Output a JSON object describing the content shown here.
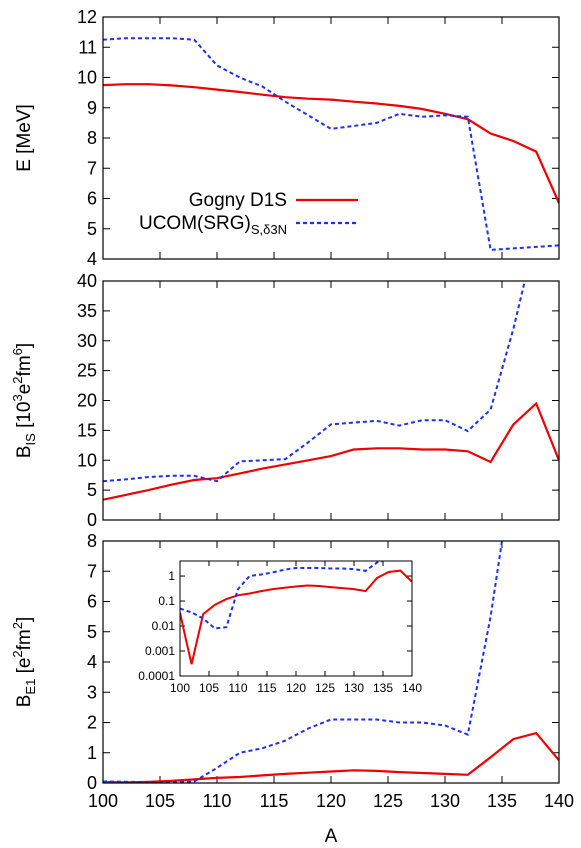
{
  "chart_data": {
    "type": "line",
    "xlabel": "A",
    "legend": {
      "placement": "lower-left of top panel",
      "entries": [
        {
          "series": "gogny",
          "label": "Gogny D1S",
          "sub": ""
        },
        {
          "series": "ucom",
          "label": "UCOM(SRG)",
          "sub": "S,δ3N"
        }
      ]
    },
    "colors": {
      "gogny": "#ee0000",
      "ucom": "#1f2fee"
    },
    "x_ticks": [
      "100",
      "105",
      "110",
      "115",
      "120",
      "125",
      "130",
      "135",
      "140"
    ],
    "panels": [
      {
        "id": "energy",
        "ylabel": {
          "base": "E [MeV]",
          "sub": "",
          "sup": ""
        },
        "xlim": [
          100,
          140
        ],
        "ylim": [
          4,
          12
        ],
        "y_ticks": [
          "4",
          "5",
          "6",
          "7",
          "8",
          "9",
          "10",
          "11",
          "12"
        ],
        "series": [
          {
            "key": "gogny",
            "name": "Gogny D1S",
            "style": "solid",
            "x": [
              100,
              102,
              104,
              106,
              108,
              110,
              112,
              114,
              116,
              118,
              120,
              122,
              124,
              126,
              128,
              130,
              132,
              134,
              136,
              138,
              140
            ],
            "y": [
              9.75,
              9.78,
              9.78,
              9.74,
              9.68,
              9.6,
              9.52,
              9.43,
              9.35,
              9.3,
              9.27,
              9.2,
              9.14,
              9.06,
              8.96,
              8.8,
              8.62,
              8.15,
              7.9,
              7.55,
              5.85
            ]
          },
          {
            "key": "ucom",
            "name": "UCOM(SRG)S,δ3N",
            "style": "dotted",
            "x": [
              100,
              102,
              104,
              106,
              108,
              110,
              112,
              114,
              116,
              118,
              120,
              122,
              124,
              126,
              128,
              130,
              132,
              134,
              136,
              138,
              140
            ],
            "y": [
              11.25,
              11.3,
              11.3,
              11.3,
              11.25,
              10.4,
              10.0,
              9.7,
              9.2,
              8.75,
              8.3,
              8.4,
              8.5,
              8.8,
              8.7,
              8.75,
              8.7,
              4.3,
              4.35,
              4.4,
              4.45
            ]
          }
        ]
      },
      {
        "id": "bis",
        "ylabel": {
          "base": "B",
          "sub": "IS",
          "rest": " [10",
          "sup": "3",
          "rest2": "e",
          "sup2": "2",
          "rest3": "fm",
          "sup3": "6",
          "end": "]"
        },
        "xlim": [
          100,
          140
        ],
        "ylim": [
          0,
          40
        ],
        "y_ticks": [
          "0",
          "5",
          "10",
          "15",
          "20",
          "25",
          "30",
          "35",
          "40"
        ],
        "series": [
          {
            "key": "gogny",
            "name": "Gogny D1S",
            "style": "solid",
            "x": [
              100,
              102,
              104,
              106,
              108,
              110,
              112,
              114,
              116,
              118,
              120,
              122,
              124,
              126,
              128,
              130,
              132,
              134,
              136,
              138,
              140
            ],
            "y": [
              3.4,
              4.2,
              5.0,
              5.9,
              6.7,
              7.0,
              7.8,
              8.6,
              9.3,
              10.0,
              10.7,
              11.8,
              12.0,
              12.0,
              11.8,
              11.8,
              11.5,
              9.7,
              16.0,
              19.5,
              10.0
            ]
          },
          {
            "key": "ucom",
            "name": "UCOM(SRG)S,δ3N",
            "style": "dotted",
            "x": [
              100,
              102,
              104,
              106,
              108,
              110,
              112,
              114,
              116,
              118,
              120,
              122,
              124,
              126,
              128,
              130,
              132,
              134,
              136,
              137
            ],
            "y": [
              6.5,
              6.8,
              7.2,
              7.4,
              7.4,
              6.5,
              9.8,
              10.0,
              10.2,
              13.0,
              16.0,
              16.3,
              16.6,
              15.8,
              16.7,
              16.7,
              14.9,
              18.5,
              32.0,
              40.0
            ]
          }
        ]
      },
      {
        "id": "be1",
        "ylabel": {
          "base": "B",
          "sub": "E1",
          "rest": " [e",
          "sup": "2",
          "rest2": "fm",
          "sup2": "2",
          "end": "]"
        },
        "xlim": [
          100,
          140
        ],
        "ylim": [
          0,
          8
        ],
        "y_ticks": [
          "0",
          "1",
          "2",
          "3",
          "4",
          "5",
          "6",
          "7",
          "8"
        ],
        "series": [
          {
            "key": "gogny",
            "name": "Gogny D1S",
            "style": "solid",
            "x": [
              100,
              102,
              104,
              106,
              108,
              110,
              112,
              114,
              116,
              118,
              120,
              122,
              124,
              126,
              128,
              130,
              132,
              134,
              136,
              138,
              140
            ],
            "y": [
              0.03,
              0.02,
              0.04,
              0.07,
              0.12,
              0.17,
              0.2,
              0.25,
              0.3,
              0.34,
              0.38,
              0.42,
              0.4,
              0.36,
              0.33,
              0.3,
              0.27,
              0.85,
              1.45,
              1.65,
              0.75
            ]
          },
          {
            "key": "ucom",
            "name": "UCOM(SRG)S,δ3N",
            "style": "dotted",
            "x": [
              100,
              102,
              104,
              106,
              108,
              110,
              112,
              114,
              116,
              118,
              120,
              122,
              124,
              126,
              128,
              130,
              132,
              134,
              135
            ],
            "y": [
              0.05,
              0.04,
              0.03,
              0.02,
              0.05,
              0.5,
              1.0,
              1.15,
              1.4,
              1.8,
              2.1,
              2.1,
              2.1,
              2.0,
              2.0,
              1.9,
              1.6,
              5.5,
              8.0
            ]
          }
        ]
      }
    ],
    "inset": {
      "scale": "log",
      "xlim": [
        100,
        140
      ],
      "ylim": [
        0.0001,
        4
      ],
      "x_ticks": [
        "100",
        "105",
        "110",
        "115",
        "120",
        "125",
        "130",
        "135",
        "140"
      ],
      "y_ticks": [
        "0.0001",
        "0.001",
        "0.01",
        "0.1",
        "1"
      ],
      "series": [
        {
          "key": "gogny",
          "name": "Gogny D1S",
          "style": "solid",
          "x": [
            100,
            101,
            102,
            104,
            106,
            108,
            110,
            112,
            114,
            116,
            118,
            120,
            122,
            124,
            126,
            128,
            130,
            132,
            134,
            136,
            138,
            140
          ],
          "y": [
            0.035,
            0.003,
            0.0003,
            0.03,
            0.07,
            0.12,
            0.17,
            0.2,
            0.25,
            0.3,
            0.34,
            0.38,
            0.42,
            0.4,
            0.36,
            0.33,
            0.3,
            0.25,
            0.85,
            1.45,
            1.65,
            0.6
          ]
        },
        {
          "key": "ucom",
          "name": "UCOM(SRG)S,δ3N",
          "style": "dotted",
          "x": [
            100,
            102,
            104,
            106,
            108,
            110,
            112,
            114,
            116,
            118,
            120,
            122,
            124,
            126,
            128,
            130,
            132,
            134,
            135
          ],
          "y": [
            0.05,
            0.035,
            0.02,
            0.008,
            0.009,
            0.3,
            1.0,
            1.15,
            1.4,
            1.8,
            2.1,
            2.1,
            2.1,
            2.0,
            2.0,
            1.9,
            1.6,
            3.5,
            4.0
          ]
        }
      ]
    }
  }
}
